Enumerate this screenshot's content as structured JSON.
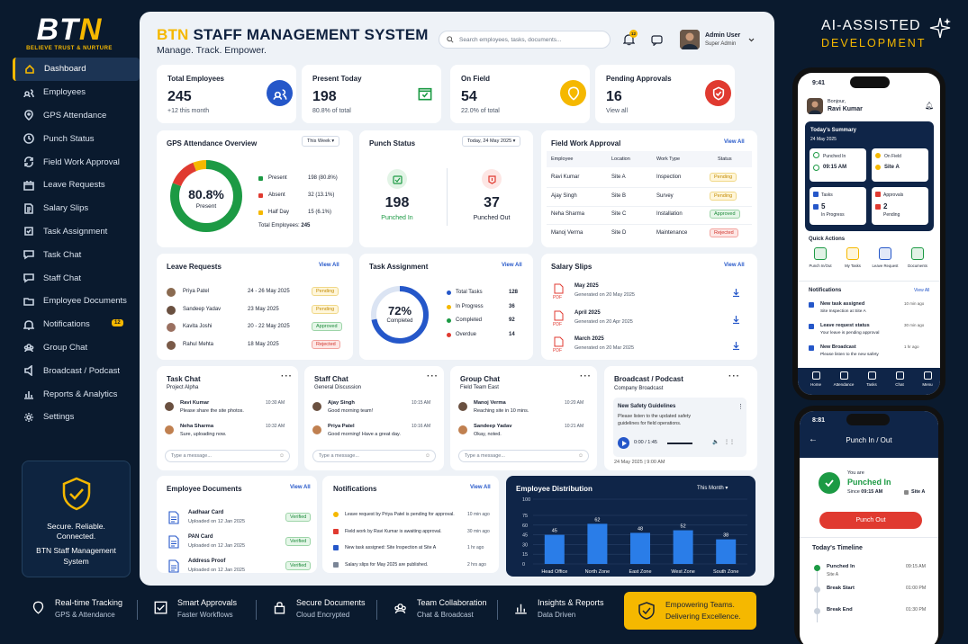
{
  "brand": {
    "logo": "BTN",
    "tagline": "BELIEVE TRUST & NURTURE"
  },
  "sidebar": {
    "items": [
      {
        "label": "Dashboard",
        "icon": "home-icon",
        "active": true
      },
      {
        "label": "Employees",
        "icon": "users-icon"
      },
      {
        "label": "GPS Attendance",
        "icon": "gps-icon"
      },
      {
        "label": "Punch Status",
        "icon": "clock-icon"
      },
      {
        "label": "Field Work Approval",
        "icon": "refresh-icon"
      },
      {
        "label": "Leave Requests",
        "icon": "calendar-icon"
      },
      {
        "label": "Salary Slips",
        "icon": "document-icon"
      },
      {
        "label": "Task Assignment",
        "icon": "task-icon"
      },
      {
        "label": "Task Chat",
        "icon": "chat-icon"
      },
      {
        "label": "Staff Chat",
        "icon": "chat-icon"
      },
      {
        "label": "Employee Documents",
        "icon": "folder-icon"
      },
      {
        "label": "Notifications",
        "icon": "bell-icon",
        "badge": "12"
      },
      {
        "label": "Group Chat",
        "icon": "group-icon"
      },
      {
        "label": "Broadcast / Podcast",
        "icon": "broadcast-icon"
      },
      {
        "label": "Reports & Analytics",
        "icon": "chart-icon"
      },
      {
        "label": "Settings",
        "icon": "gear-icon"
      }
    ],
    "secure": {
      "line1": "Secure. Reliable.",
      "line2": "Connected.",
      "line3": "BTN Staff Management",
      "line4": "System"
    }
  },
  "header": {
    "brand": "BTN",
    "title": "STAFF MANAGEMENT SYSTEM",
    "subtitle": "Manage. Track. Empower.",
    "search_placeholder": "Search employees, tasks, documents...",
    "bell_badge": "12",
    "user_name": "Admin User",
    "user_role": "Super Admin"
  },
  "stats": [
    {
      "label": "Total Employees",
      "value": "245",
      "sub": "+12 this month",
      "color": "#2557c9"
    },
    {
      "label": "Present Today",
      "value": "198",
      "sub": "80.8% of total",
      "color": "#1c9a44"
    },
    {
      "label": "On Field",
      "value": "54",
      "sub": "22.0% of total",
      "color": "#f5b800"
    },
    {
      "label": "Pending Approvals",
      "value": "16",
      "sub": "View all",
      "color": "#e03a30"
    }
  ],
  "gps": {
    "title": "GPS Attendance Overview",
    "filter": "This Week",
    "center_value": "80.8%",
    "center_label": "Present",
    "legend": [
      {
        "label": "Present",
        "value": "198 (80.8%)",
        "color": "#1c9a44"
      },
      {
        "label": "Absent",
        "value": "32 (13.1%)",
        "color": "#e03a30"
      },
      {
        "label": "Half Day",
        "value": "15  (6.1%)",
        "color": "#f5b800"
      }
    ],
    "total_label": "Total Employees:",
    "total_value": "245"
  },
  "punch": {
    "title": "Punch Status",
    "date": "Today, 24 May 2025",
    "in_value": "198",
    "in_label": "Punched In",
    "out_value": "37",
    "out_label": "Punched Out"
  },
  "fieldwork": {
    "title": "Field Work Approval",
    "view_all": "View All",
    "columns": [
      "Employee",
      "Location",
      "Work Type",
      "Status"
    ],
    "rows": [
      {
        "name": "Ravi Kumar",
        "loc": "Site A",
        "type": "Inspection",
        "status": "Pending"
      },
      {
        "name": "Ajay Singh",
        "loc": "Site B",
        "type": "Survey",
        "status": "Pending"
      },
      {
        "name": "Neha Sharma",
        "loc": "Site C",
        "type": "Installation",
        "status": "Approved"
      },
      {
        "name": "Manoj Verma",
        "loc": "Site D",
        "type": "Maintenance",
        "status": "Rejected"
      }
    ]
  },
  "leave": {
    "title": "Leave Requests",
    "view_all": "View All",
    "rows": [
      {
        "name": "Priya Patel",
        "dates": "24 - 26 May 2025",
        "status": "Pending"
      },
      {
        "name": "Sandeep Yadav",
        "dates": "23 May 2025",
        "status": "Pending"
      },
      {
        "name": "Kavita Joshi",
        "dates": "20 - 22 May 2025",
        "status": "Approved"
      },
      {
        "name": "Rahul Mehta",
        "dates": "18 May 2025",
        "status": "Rejected"
      }
    ]
  },
  "task": {
    "title": "Task Assignment",
    "view_all": "View All",
    "center_value": "72%",
    "center_label": "Completed",
    "progress": 0.72,
    "rows": [
      {
        "label": "Total Tasks",
        "value": "128",
        "color": "#2557c9"
      },
      {
        "label": "In Progress",
        "value": "36",
        "color": "#f5b800"
      },
      {
        "label": "Completed",
        "value": "92",
        "color": "#1c9a44"
      },
      {
        "label": "Overdue",
        "value": "14",
        "color": "#e03a30"
      }
    ]
  },
  "salary": {
    "title": "Salary Slips",
    "view_all": "View All",
    "rows": [
      {
        "month": "May 2025",
        "gen": "Generated on 20 May 2025"
      },
      {
        "month": "April 2025",
        "gen": "Generated on 20 Apr 2025"
      },
      {
        "month": "March 2025",
        "gen": "Generated on 20 Mar 2025"
      }
    ],
    "pdf": "PDF"
  },
  "chats": [
    {
      "title": "Task Chat",
      "sub": "Project Alpha",
      "msgs": [
        {
          "name": "Ravi Kumar",
          "text": "Please share the site photos.",
          "time": "10:30 AM"
        },
        {
          "name": "Neha Sharma",
          "text": "Sure, uploading now.",
          "time": "10:32 AM"
        }
      ],
      "placeholder": "Type a message..."
    },
    {
      "title": "Staff Chat",
      "sub": "General Discussion",
      "msgs": [
        {
          "name": "Ajay Singh",
          "text": "Good morning team!",
          "time": "10:15 AM"
        },
        {
          "name": "Priya Patel",
          "text": "Good morning! Have a great day.",
          "time": "10:16 AM"
        }
      ],
      "placeholder": "Type a message..."
    },
    {
      "title": "Group Chat",
      "sub": "Field Team East",
      "msgs": [
        {
          "name": "Manoj Verma",
          "text": "Reaching site in 10 mins.",
          "time": "10:20 AM"
        },
        {
          "name": "Sandeep Yadav",
          "text": "Okay, noted.",
          "time": "10:21 AM"
        }
      ],
      "placeholder": "Type a message..."
    }
  ],
  "broadcast": {
    "title": "Broadcast / Podcast",
    "sub": "Company Broadcast",
    "item_title": "New Safety Guidelines",
    "item_text": "Please listen to the updated safety guidelines for field operations.",
    "time": "0:00 / 1:45",
    "date": "24 May 2025  |  9:00 AM",
    "progress": 0.0
  },
  "docs": {
    "title": "Employee Documents",
    "view_all": "View All",
    "rows": [
      {
        "name": "Aadhaar Card",
        "up": "Uploaded on 12 Jan 2025",
        "status": "Verified"
      },
      {
        "name": "PAN Card",
        "up": "Uploaded on 12 Jan 2025",
        "status": "Verified"
      },
      {
        "name": "Address Proof",
        "up": "Uploaded on 12 Jan 2025",
        "status": "Verified"
      }
    ]
  },
  "notifs": {
    "title": "Notifications",
    "view_all": "View All",
    "rows": [
      {
        "text": "Leave request by Priya Patel is pending for approval.",
        "time": "10 min ago",
        "color": "#f5b800"
      },
      {
        "text": "Field work by Ravi Kumar is awaiting approval.",
        "time": "30 min ago",
        "color": "#e03a30"
      },
      {
        "text": "New task assigned: Site Inspection at Site A",
        "time": "1 hr ago",
        "color": "#2557c9"
      },
      {
        "text": "Salary slips for May 2025 are published.",
        "time": "2 hrs ago",
        "color": "#7a8596"
      }
    ]
  },
  "chart_data": {
    "type": "bar",
    "title": "Employee Distribution",
    "filter": "This Month",
    "categories": [
      "Head Office",
      "North Zone",
      "East Zone",
      "West Zone",
      "South Zone"
    ],
    "values": [
      45,
      62,
      48,
      52,
      38
    ],
    "ylim": [
      0,
      100
    ],
    "yticks": [
      0,
      15,
      30,
      45,
      60,
      75,
      100
    ],
    "grid": true,
    "color": "#2a7de8"
  },
  "bottom": {
    "features": [
      {
        "t1": "Real-time Tracking",
        "t2": "GPS & Attendance",
        "icon": "pin-icon"
      },
      {
        "t1": "Smart Approvals",
        "t2": "Faster Workflows",
        "icon": "check-icon"
      },
      {
        "t1": "Secure Documents",
        "t2": "Cloud Encrypted",
        "icon": "lock-icon"
      },
      {
        "t1": "Team Collaboration",
        "t2": "Chat & Broadcast",
        "icon": "group-icon"
      },
      {
        "t1": "Insights & Reports",
        "t2": "Data Driven",
        "icon": "chart-icon"
      }
    ],
    "cta1": "Empowering Teams.",
    "cta2": "Delivering Excellence."
  },
  "promo": {
    "line1": "AI-ASSISTED",
    "line2": "DEVELOPMENT"
  },
  "phone1": {
    "time": "9:41",
    "greet": "Bonjour,",
    "name": "Ravi Kumar",
    "summary": "Today's Summary",
    "date": "24 May 2025",
    "punched_label": "Punched In",
    "punched_val": "09:15 AM",
    "field_label": "On Field",
    "field_val": "Site A",
    "tasks_label": "Tasks",
    "tasks_val": "5",
    "tasks_sub": "In Progress",
    "appr_label": "Approvals",
    "appr_val": "2",
    "appr_sub": "Pending",
    "qa_title": "Quick Actions",
    "qa": [
      "Punch In/Out",
      "My Tasks",
      "Leave Request",
      "Documents"
    ],
    "n_title": "Notifications",
    "n_view": "View All",
    "notifs": [
      {
        "t": "New task assigned",
        "s": "Site Inspection at Site A",
        "time": "10 min ago"
      },
      {
        "t": "Leave request status",
        "s": "Your leave is pending approval",
        "time": "30 min ago"
      },
      {
        "t": "New Broadcast",
        "s": "Please listen to the new safety",
        "time": "1 hr ago"
      }
    ],
    "tabs": [
      "Home",
      "Attendance",
      "Tasks",
      "Chat",
      "Menu"
    ]
  },
  "phone2": {
    "time": "8:81",
    "title": "Punch In / Out",
    "you": "You are",
    "status": "Punched In",
    "since": "Since",
    "since_time": "09:15 AM",
    "site": "Site A",
    "btn": "Punch Out",
    "tl_title": "Today's Timeline",
    "tl": [
      {
        "t": "Punched In",
        "s": "Site A",
        "time": "09:15 AM"
      },
      {
        "t": "Break Start",
        "s": "",
        "time": "01:00 PM"
      },
      {
        "t": "Break End",
        "s": "",
        "time": "01:30 PM"
      }
    ]
  }
}
